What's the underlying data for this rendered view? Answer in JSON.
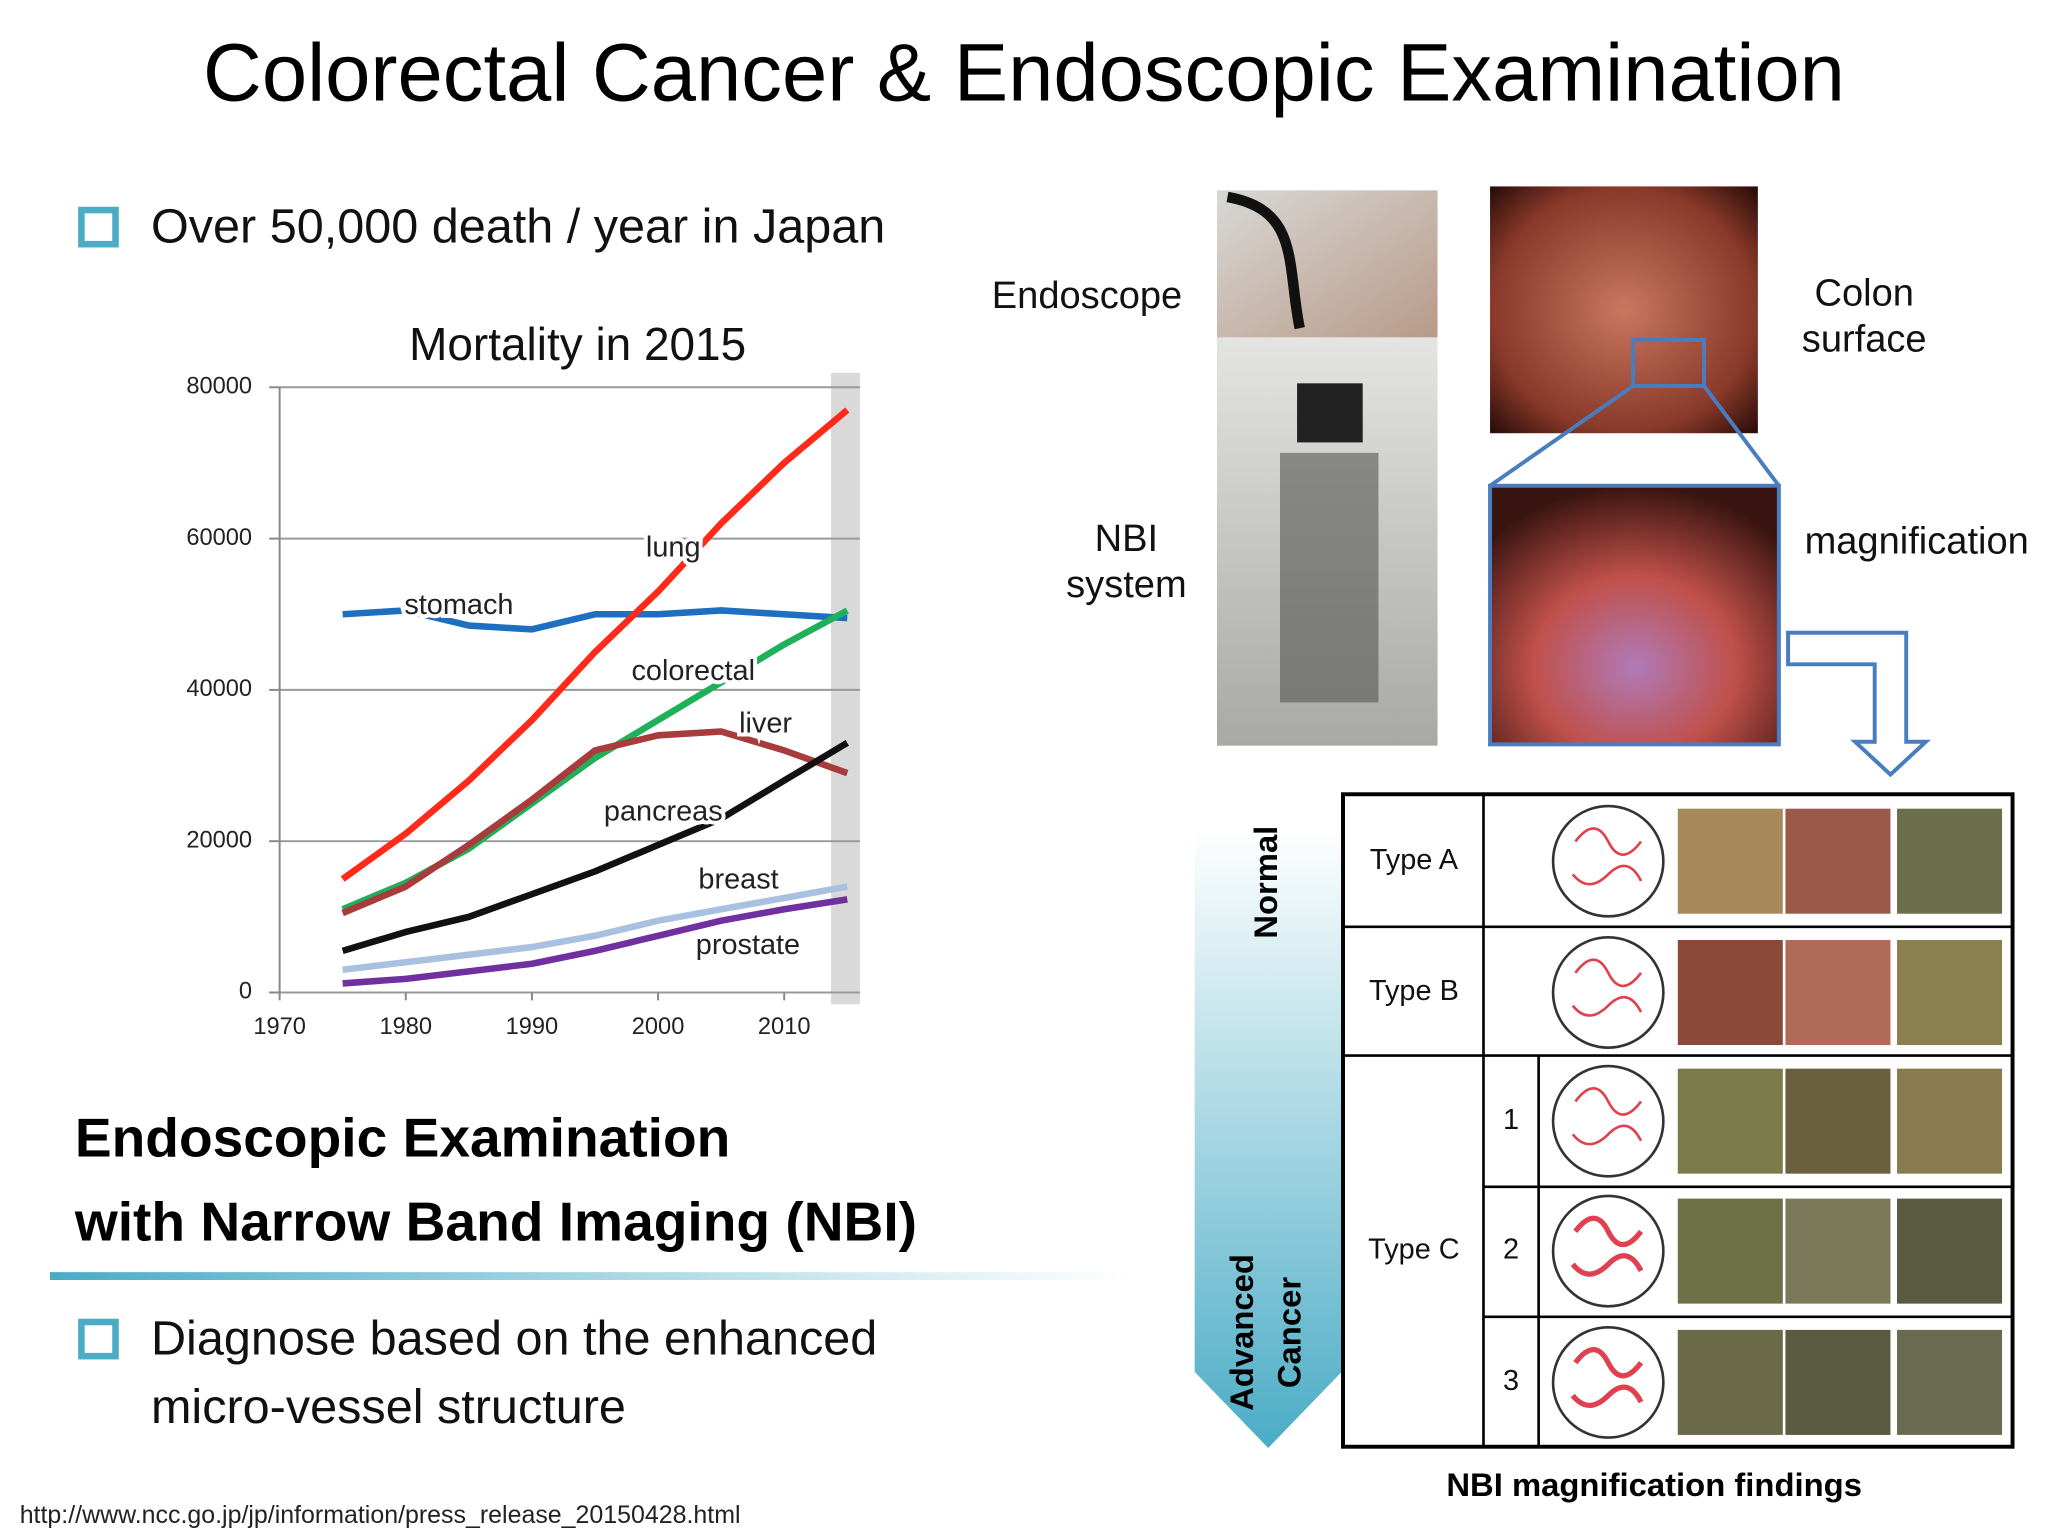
{
  "title": "Colorectal Cancer & Endoscopic Examination",
  "bullets": [
    "Over 50,000 death / year in Japan"
  ],
  "chart_data": {
    "type": "line",
    "title": "Mortality in 2015",
    "x": [
      1975,
      1980,
      1985,
      1990,
      1995,
      2000,
      2005,
      2010,
      2015
    ],
    "xlim": [
      1970,
      2016
    ],
    "xticks": [
      1970,
      1980,
      1990,
      2000,
      2010
    ],
    "ylim": [
      0,
      80000
    ],
    "yticks": [
      0,
      20000,
      40000,
      60000,
      80000
    ],
    "grid": true,
    "series": [
      {
        "name": "stomach",
        "color": "#1f6fc0",
        "values": [
          50000,
          50500,
          48500,
          48000,
          50000,
          50000,
          50500,
          50000,
          49500
        ]
      },
      {
        "name": "lung",
        "color": "#ff2a1a",
        "values": [
          15000,
          21000,
          28000,
          36000,
          45000,
          53000,
          62000,
          70000,
          77000
        ]
      },
      {
        "name": "colorectal",
        "color": "#1fb05a",
        "values": [
          11000,
          14500,
          19000,
          25000,
          31000,
          36000,
          41000,
          46000,
          50500
        ]
      },
      {
        "name": "liver",
        "color": "#a83b3b",
        "values": [
          10500,
          14000,
          19500,
          25500,
          32000,
          34000,
          34500,
          32000,
          29000
        ]
      },
      {
        "name": "pancreas",
        "color": "#111111",
        "values": [
          5500,
          8000,
          10000,
          13000,
          16000,
          19500,
          23000,
          28000,
          33000
        ]
      },
      {
        "name": "breast",
        "color": "#a9c1e0",
        "values": [
          3000,
          4000,
          5000,
          6000,
          7500,
          9500,
          11000,
          12500,
          14000
        ]
      },
      {
        "name": "prostate",
        "color": "#7030a0",
        "values": [
          1200,
          1800,
          2800,
          3800,
          5500,
          7500,
          9500,
          11000,
          12300
        ]
      }
    ]
  },
  "section_heading": [
    "Endoscopic Examination",
    "with Narrow Band Imaging (NBI)"
  ],
  "bullets2": [
    "Diagnose based on the enhanced",
    "micro-vessel structure"
  ],
  "source": "http://www.ncc.go.jp/jp/information/press_release_20150428.html",
  "photo_labels": {
    "endoscope": "Endoscope",
    "nbi_system": [
      "NBI",
      "system"
    ],
    "colon_surface": [
      "Colon",
      "surface"
    ],
    "magnification": "magnification"
  },
  "table": {
    "caption": "NBI magnification findings",
    "scale_top": "Normal",
    "scale_bottom": [
      "Advanced",
      "Cancer"
    ],
    "types": [
      "Type A",
      "Type B",
      "Type C"
    ],
    "subtypes": [
      "1",
      "2",
      "3"
    ]
  }
}
